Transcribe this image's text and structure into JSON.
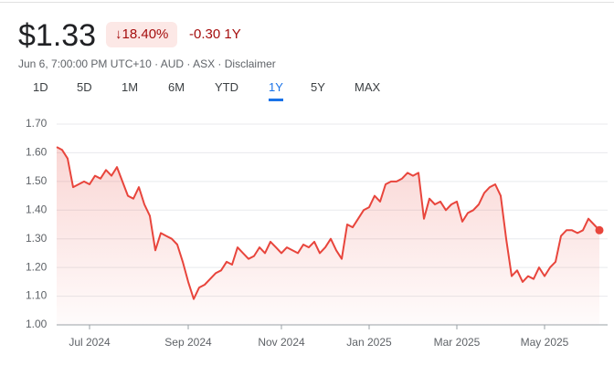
{
  "header": {
    "price": "$1.33",
    "change_percent": "18.40%",
    "change": "-0.30 1Y",
    "subtitle": "Jun 6, 7:00:00 PM UTC+10 · AUD · ASX · Disclaimer",
    "ranges": [
      "1D",
      "5D",
      "1M",
      "6M",
      "YTD",
      "1Y",
      "5Y",
      "MAX"
    ],
    "selected_range": 5
  },
  "chart_data": {
    "type": "line",
    "categories": [
      null,
      null,
      null,
      null,
      null,
      null,
      "Jul 2024",
      null,
      null,
      null,
      null,
      null,
      null,
      null,
      null,
      null,
      null,
      null,
      null,
      null,
      null,
      null,
      null,
      null,
      "Sep 2024",
      null,
      null,
      null,
      null,
      null,
      null,
      null,
      null,
      null,
      null,
      null,
      null,
      null,
      null,
      null,
      null,
      "Nov 2024",
      null,
      null,
      null,
      null,
      null,
      null,
      null,
      null,
      null,
      null,
      null,
      null,
      null,
      null,
      null,
      "Jan 2025",
      null,
      null,
      null,
      null,
      null,
      null,
      null,
      null,
      null,
      null,
      null,
      null,
      null,
      null,
      null,
      "Mar 2025",
      null,
      null,
      null,
      null,
      null,
      null,
      null,
      null,
      null,
      null,
      null,
      null,
      null,
      null,
      null,
      "May 2025",
      null,
      null,
      null,
      null,
      null,
      null,
      null,
      null,
      null,
      null
    ],
    "series": [
      {
        "color": "#e8453c",
        "values": [
          1.62,
          1.61,
          1.58,
          1.48,
          1.49,
          1.5,
          1.49,
          1.52,
          1.51,
          1.54,
          1.52,
          1.55,
          1.5,
          1.45,
          1.44,
          1.48,
          1.42,
          1.38,
          1.26,
          1.32,
          1.31,
          1.3,
          1.28,
          1.22,
          1.15,
          1.09,
          1.13,
          1.14,
          1.16,
          1.18,
          1.19,
          1.22,
          1.21,
          1.27,
          1.25,
          1.23,
          1.24,
          1.27,
          1.25,
          1.29,
          1.27,
          1.25,
          1.27,
          1.26,
          1.25,
          1.28,
          1.27,
          1.29,
          1.25,
          1.27,
          1.3,
          1.26,
          1.23,
          1.35,
          1.34,
          1.37,
          1.4,
          1.41,
          1.45,
          1.43,
          1.49,
          1.5,
          1.5,
          1.51,
          1.53,
          1.52,
          1.53,
          1.37,
          1.44,
          1.42,
          1.43,
          1.4,
          1.42,
          1.43,
          1.36,
          1.39,
          1.4,
          1.42,
          1.46,
          1.48,
          1.49,
          1.45,
          1.3,
          1.17,
          1.19,
          1.15,
          1.17,
          1.16,
          1.2,
          1.17,
          1.2,
          1.22,
          1.31,
          1.33,
          1.33,
          1.32,
          1.33,
          1.37,
          1.35,
          1.33
        ]
      }
    ],
    "ylim": [
      1.0,
      1.7
    ],
    "yticks": [
      {
        "value": 1,
        "label": "1.00"
      },
      {
        "value": 1.1,
        "label": "1.10"
      },
      {
        "value": 1.2,
        "label": "1.20"
      },
      {
        "value": 1.3,
        "label": "1.30"
      },
      {
        "value": 1.4,
        "label": "1.40"
      },
      {
        "value": 1.5,
        "label": "1.50"
      },
      {
        "value": 1.6,
        "label": "1.60"
      },
      {
        "value": 1.7,
        "label": "1.70"
      }
    ],
    "grid": true
  }
}
